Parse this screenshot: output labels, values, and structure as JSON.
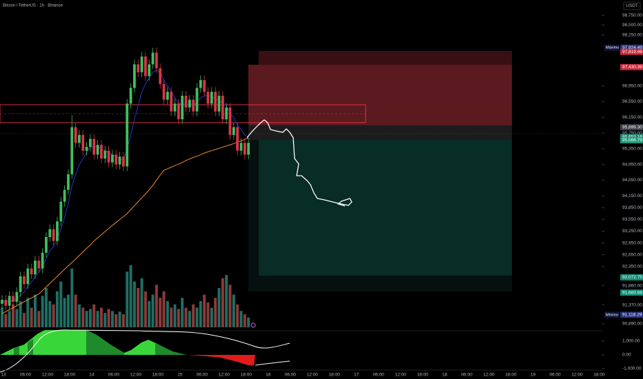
{
  "chart_data": {
    "type": "candlestick",
    "title": "Bitcoin / TetherUS · 1h · Binance",
    "currency": "USDT",
    "up_color": "#3fbf5f",
    "down_color": "#d9354a",
    "volume_up_color": "#1f6e63",
    "volume_down_color": "#8c3a3a",
    "ylim": [
      90800,
      99140
    ],
    "yticks": [
      {
        "value": 98750,
        "label": "98,750.00"
      },
      {
        "value": 98500,
        "label": "98,500.00"
      },
      {
        "value": 98250,
        "label": "98,250.00"
      },
      {
        "value": 96950,
        "label": "96,950.00"
      },
      {
        "value": 96550,
        "label": "96,550.00"
      },
      {
        "value": 96150,
        "label": "96,150.00"
      },
      {
        "value": 95750,
        "label": "95,750.00"
      },
      {
        "value": 95350,
        "label": "95,350.00"
      },
      {
        "value": 94950,
        "label": "94,950.00"
      },
      {
        "value": 94550,
        "label": "94,550.00"
      },
      {
        "value": 94150,
        "label": "94,150.00"
      },
      {
        "value": 93850,
        "label": "93,850.00"
      },
      {
        "value": 93550,
        "label": "93,550.00"
      },
      {
        "value": 93250,
        "label": "93,250.00"
      },
      {
        "value": 92950,
        "label": "92,950.00"
      },
      {
        "value": 92650,
        "label": "92,650.00"
      },
      {
        "value": 92350,
        "label": "92,350.00"
      },
      {
        "value": 91860,
        "label": "91,860.00"
      },
      {
        "value": 91370,
        "label": "91,370.00"
      },
      {
        "value": 90890,
        "label": "90,890.00"
      }
    ],
    "price_labels": [
      {
        "tag": "Máximo",
        "value": 97924.49,
        "label": "97,924.49",
        "color": "#24307a"
      },
      {
        "value": 97819.46,
        "label": "97,819.46",
        "color": "#c62a3c"
      },
      {
        "value": 97430.39,
        "label": "97,430.39",
        "color": "#c62a3c"
      },
      {
        "value": 95899.3,
        "label": "95,899.30",
        "color": "#3a3d45"
      },
      {
        "value": 95653.16,
        "label": "95,653.16",
        "color": "#1d7f6a"
      },
      {
        "value": 95566.79,
        "label": "95,566.79",
        "color": "#1f9a78"
      },
      {
        "value": 92072.75,
        "label": "92,072.75",
        "color": "#0f8a72"
      },
      {
        "value": 91683.68,
        "label": "91,683.68",
        "color": "#0f8a72"
      },
      {
        "tag": "Mínimo",
        "value": 91118.29,
        "label": "91,118.29",
        "color": "#24307a"
      }
    ],
    "x_labels": [
      "13",
      "06:00",
      "12:00",
      "18:00",
      "14",
      "06:00",
      "12:00",
      "18:00",
      "15",
      "06:00",
      "12:00",
      "18:00",
      "16",
      "06:00",
      "12:00",
      "18:00",
      "17",
      "06:00",
      "12:00",
      "18:00",
      "18",
      "06:00",
      "12:00",
      "18:00",
      "19",
      "06:00",
      "12:00",
      "18:00"
    ],
    "open": [
      91400,
      91500,
      91350,
      91600,
      91450,
      91700,
      92100,
      91900,
      92300,
      92150,
      92500,
      92300,
      92700,
      93100,
      93300,
      93000,
      93500,
      94000,
      94300,
      94700,
      95900,
      95500,
      95700,
      95300,
      95400,
      95600,
      95200,
      95450,
      95100,
      95300,
      95000,
      95200,
      94950,
      95150,
      94900,
      96500,
      96900,
      97500,
      97300,
      97700,
      97200,
      97500,
      97800,
      97400,
      97000,
      96600,
      96800,
      96300,
      96500,
      96100,
      96700,
      96400,
      96600,
      96300,
      96900,
      97100,
      96800,
      96500,
      96800,
      96300,
      96700,
      96100,
      96400,
      95700,
      95900,
      95300,
      95500,
      95200
    ],
    "high": [
      91620,
      91620,
      91720,
      91720,
      91820,
      92220,
      92220,
      92420,
      92420,
      92620,
      92620,
      92820,
      93220,
      93420,
      93420,
      93620,
      94120,
      94420,
      94820,
      96200,
      96020,
      95820,
      95820,
      95520,
      95720,
      95720,
      95570,
      95570,
      95420,
      95420,
      95320,
      95320,
      95270,
      95270,
      96620,
      97020,
      97620,
      97620,
      97820,
      97820,
      97620,
      97924,
      97920,
      97520,
      97120,
      96920,
      96920,
      96620,
      96620,
      96820,
      96820,
      96720,
      96720,
      97020,
      97220,
      97220,
      96920,
      96920,
      96920,
      96820,
      96820,
      96520,
      96520,
      96020,
      96020,
      95620,
      95620,
      95620
    ],
    "low": [
      91280,
      91230,
      91230,
      91330,
      91330,
      91580,
      91780,
      91780,
      92030,
      92030,
      92180,
      92180,
      92580,
      92980,
      92880,
      92880,
      93380,
      93880,
      94180,
      94580,
      95380,
      95380,
      95180,
      95180,
      95280,
      95080,
      95080,
      94980,
      94980,
      94880,
      94880,
      94830,
      94830,
      94780,
      94780,
      96380,
      96780,
      97180,
      97180,
      97080,
      97080,
      97380,
      97280,
      96880,
      96480,
      96480,
      96180,
      96180,
      95980,
      95980,
      96280,
      96280,
      96180,
      96180,
      96780,
      96680,
      96380,
      96380,
      96180,
      96180,
      95980,
      95980,
      95580,
      95580,
      95180,
      95180,
      95080,
      95080
    ],
    "close": [
      91500,
      91350,
      91600,
      91450,
      91700,
      92100,
      91900,
      92300,
      92150,
      92500,
      92300,
      92700,
      93100,
      93300,
      93000,
      93500,
      94000,
      94300,
      94700,
      95900,
      95500,
      95700,
      95300,
      95400,
      95600,
      95200,
      95450,
      95100,
      95300,
      95000,
      95200,
      94950,
      95150,
      94900,
      96500,
      96900,
      97500,
      97300,
      97700,
      97200,
      97500,
      97800,
      97400,
      97000,
      96600,
      96800,
      96300,
      96500,
      96100,
      96700,
      96400,
      96600,
      96300,
      96900,
      97100,
      96800,
      96500,
      96800,
      96300,
      96700,
      96100,
      96400,
      95700,
      95900,
      95300,
      95500,
      95200,
      95500
    ],
    "volume": [
      30,
      20,
      25,
      35,
      28,
      40,
      22,
      45,
      30,
      50,
      25,
      48,
      60,
      40,
      35,
      55,
      70,
      45,
      50,
      90,
      50,
      35,
      30,
      25,
      28,
      35,
      25,
      30,
      22,
      28,
      25,
      20,
      24,
      20,
      85,
      95,
      70,
      60,
      75,
      55,
      40,
      50,
      65,
      45,
      55,
      40,
      30,
      35,
      28,
      45,
      30,
      25,
      35,
      30,
      40,
      50,
      38,
      30,
      45,
      60,
      75,
      80,
      65,
      50,
      35,
      25,
      20,
      15
    ],
    "moving_averages": [
      {
        "color": "#2337c9",
        "values": [
          91450,
          91450,
          91470,
          91480,
          91520,
          91620,
          91700,
          91850,
          91950,
          92100,
          92200,
          92350,
          92550,
          92750,
          92850,
          93050,
          93300,
          93600,
          93950,
          94400,
          94700,
          94950,
          95100,
          95250,
          95400,
          95400,
          95400,
          95350,
          95300,
          95250,
          95200,
          95150,
          95100,
          95050,
          95350,
          95700,
          96100,
          96450,
          96800,
          97000,
          97150,
          97300,
          97350,
          97300,
          97100,
          96950,
          96800,
          96650,
          96500,
          96500,
          96450,
          96500,
          96450,
          96550,
          96650,
          96700,
          96700,
          96700,
          96600,
          96600,
          96500,
          96450,
          96250,
          96150,
          95950,
          95850,
          95700,
          95650
        ]
      },
      {
        "color": "#f08a2c",
        "values": [
          91150,
          91200,
          91250,
          91300,
          91350,
          91400,
          91450,
          91500,
          91550,
          91600,
          91650,
          91740,
          91830,
          91920,
          92010,
          92100,
          92190,
          92280,
          92370,
          92450,
          92540,
          92630,
          92720,
          92810,
          92900,
          93000,
          93080,
          93160,
          93240,
          93320,
          93400,
          93470,
          93550,
          93620,
          93700,
          93800,
          93900,
          94000,
          94100,
          94200,
          94300,
          94420,
          94550,
          94680,
          94800,
          94840,
          94880,
          94920,
          94960,
          95000,
          95050,
          95090,
          95130,
          95160,
          95200,
          95240,
          95270,
          95300,
          95330,
          95360,
          95390,
          95420,
          95450,
          95480,
          95520,
          95550,
          95590,
          95620
        ]
      }
    ],
    "oscillator_yticks": [
      {
        "value": 1000,
        "label": "1,000.00"
      },
      {
        "value": 0,
        "label": "0.00"
      },
      {
        "value": -1000,
        "label": "-1,000.00"
      }
    ]
  }
}
